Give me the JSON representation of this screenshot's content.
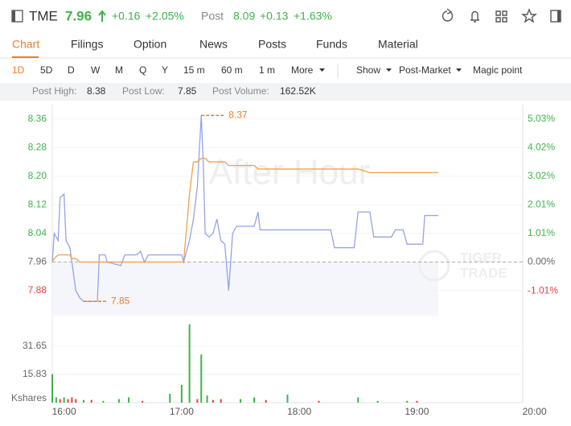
{
  "header": {
    "symbol": "TME",
    "price": 7.96,
    "change": "+0.16",
    "change_pct": "+2.05%",
    "post_label": "Post",
    "post_price": 8.09,
    "post_change": "+0.13",
    "post_change_pct": "+1.63%"
  },
  "tabs": [
    "Chart",
    "Filings",
    "Option",
    "News",
    "Posts",
    "Funds",
    "Material"
  ],
  "active_tab": 0,
  "periods": [
    "1D",
    "5D",
    "D",
    "W",
    "M",
    "Q",
    "Y",
    "15 m",
    "60 m",
    "1 m",
    "More"
  ],
  "active_period": 0,
  "tools": [
    "Show",
    "Post-Market",
    "Magic point"
  ],
  "stats": [
    {
      "label": "Post High:",
      "value": 8.38
    },
    {
      "label": "Post Low:",
      "value": 7.85
    },
    {
      "label": "Post Volume:",
      "value": "162.52K"
    }
  ],
  "chart_data": [
    {
      "type": "line",
      "watermark": "After Hour",
      "logo": [
        "TIGER",
        "TRADE"
      ],
      "x": [
        "15:54",
        "15:55",
        "15:57",
        "15:58",
        "16:00",
        "16:01",
        "16:03",
        "16:04",
        "16:06",
        "16:08",
        "16:10",
        "16:17",
        "16:18",
        "16:21",
        "16:22",
        "16:29",
        "16:31",
        "16:37",
        "16:39",
        "16:41",
        "16:43",
        "17:00",
        "17:01",
        "17:04",
        "17:06",
        "17:08",
        "17:10",
        "17:11",
        "17:12",
        "17:14",
        "17:16",
        "17:18",
        "17:20",
        "17:22",
        "17:24",
        "17:26",
        "17:28",
        "17:37",
        "17:39",
        "17:40",
        "18:16",
        "18:18",
        "18:28",
        "18:30",
        "18:36",
        "18:38",
        "18:47",
        "18:49",
        "18:53",
        "18:55",
        "19:03",
        "19:04",
        "19:11"
      ],
      "series": [
        {
          "color": "#94a3e8",
          "values": [
            7.96,
            8.04,
            8.02,
            8.14,
            8.15,
            8.02,
            8.0,
            7.96,
            7.88,
            7.86,
            7.85,
            7.85,
            7.98,
            7.98,
            7.96,
            7.95,
            7.98,
            7.98,
            7.99,
            7.96,
            7.98,
            7.98,
            7.96,
            8.02,
            8.08,
            8.17,
            8.37,
            8.24,
            8.04,
            8.03,
            8.04,
            8.08,
            8.02,
            8.01,
            7.88,
            8.04,
            8.06,
            8.06,
            8.1,
            8.05,
            8.05,
            8.0,
            8.0,
            8.1,
            8.1,
            8.03,
            8.03,
            8.05,
            8.05,
            8.01,
            8.01,
            8.09,
            8.09
          ]
        },
        {
          "color": "#f0a04b",
          "values": [
            7.96,
            7.97,
            7.98,
            7.98,
            7.98,
            7.98,
            7.98,
            7.97,
            7.97,
            7.96,
            7.96,
            7.96,
            7.96,
            7.96,
            7.96,
            7.96,
            7.96,
            7.96,
            7.96,
            7.96,
            7.96,
            7.96,
            7.96,
            8.15,
            8.24,
            8.24,
            8.25,
            8.25,
            8.25,
            8.24,
            8.24,
            8.24,
            8.24,
            8.24,
            8.23,
            8.23,
            8.23,
            8.23,
            8.22,
            8.22,
            8.22,
            8.22,
            8.22,
            8.22,
            8.21,
            8.21,
            8.21,
            8.21,
            8.21,
            8.21,
            8.21,
            8.21,
            8.21
          ]
        }
      ],
      "xlim": [
        "15:54",
        "19:54"
      ],
      "ylim": [
        7.81,
        8.4
      ],
      "yticks": [
        7.88,
        7.96,
        8.04,
        8.12,
        {
          "value": 8.2,
          "label": "8.20"
        },
        8.28,
        8.36
      ],
      "y2lim": [
        -1.884,
        5.528
      ],
      "y2ticks": [
        {
          "value": -1.01,
          "label": "-1.01%"
        },
        {
          "value": 0,
          "label": "0.00%"
        },
        {
          "value": 1.01,
          "label": "1.01%"
        },
        {
          "value": 2.01,
          "label": "2.01%"
        },
        {
          "value": 3.02,
          "label": "3.02%"
        },
        {
          "value": 4.02,
          "label": "4.02%"
        },
        {
          "value": 5.03,
          "label": "5.03%"
        }
      ],
      "reference": 7.96,
      "up_color": "#3db34c",
      "down_color": "#e8403f",
      "flat_color": "#666666",
      "annotations": [
        {
          "x": "17:10",
          "value": 8.37
        },
        {
          "x": "16:10",
          "value": 7.85
        }
      ]
    },
    {
      "type": "bar",
      "y_label": "Kshares",
      "x": [
        "15:54",
        "15:56",
        "15:58",
        "16:00",
        "16:02",
        "16:04",
        "16:06",
        "16:10",
        "16:14",
        "16:20",
        "16:28",
        "16:33",
        "16:40",
        "16:54",
        "17:00",
        "17:04",
        "17:08",
        "17:10",
        "17:13",
        "17:16",
        "17:20",
        "17:30",
        "17:37",
        "17:43",
        "17:54",
        "18:10",
        "18:30",
        "18:40",
        "18:55",
        "19:00"
      ],
      "values": [
        16,
        3,
        2,
        3,
        2,
        3,
        2,
        1.5,
        1.5,
        1,
        2,
        3,
        1,
        5,
        10,
        44,
        2,
        27,
        4,
        1.5,
        2,
        2,
        3,
        1.5,
        4.5,
        1,
        3,
        1,
        1,
        1
      ],
      "colors": [
        "#3db34c",
        "#3db34c",
        "#e8403f",
        "#3db34c",
        "#e8403f",
        "#e8403f",
        "#e8403f",
        "#3db34c",
        "#e8403f",
        "#3db34c",
        "#3db34c",
        "#3db34c",
        "#e8403f",
        "#3db34c",
        "#3db34c",
        "#3db34c",
        "#e8403f",
        "#3db34c",
        "#3db34c",
        "#e8403f",
        "#e8403f",
        "#3db34c",
        "#3db34c",
        "#e8403f",
        "#3db34c",
        "#e8403f",
        "#3db34c",
        "#3db34c",
        "#3db34c",
        "#e8403f"
      ],
      "xlim": [
        "15:54",
        "19:54"
      ],
      "xticks": [
        "16:00",
        "17:00",
        "18:00",
        "19:00",
        "20:00"
      ],
      "ylim": [
        0,
        47.46
      ],
      "yticks": [
        15.83,
        31.65
      ]
    }
  ]
}
